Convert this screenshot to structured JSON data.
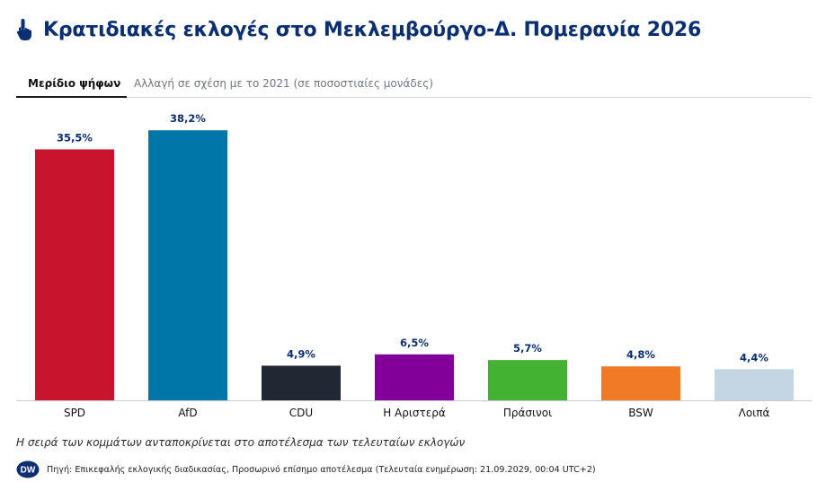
{
  "header": {
    "title": "Κρατιδιακές εκλογές στο Μεκλεμβούργο-Δ. Πομερανία 2026",
    "icon": "pointing-hand-icon"
  },
  "tabs": [
    {
      "label": "Μερίδιο ψήφων",
      "active": true
    },
    {
      "label": "Αλλαγή σε σχέση με το 2021 (σε ποσοστιαίες μονάδες)",
      "active": false
    }
  ],
  "chart_data": {
    "type": "bar",
    "categories": [
      "SPD",
      "AfD",
      "CDU",
      "Η Αριστερά",
      "Πράσινοι",
      "BSW",
      "Λοιπά"
    ],
    "values": [
      35.5,
      38.2,
      4.9,
      6.5,
      5.7,
      4.8,
      4.4
    ],
    "value_labels": [
      "35,5%",
      "38,2%",
      "4,9%",
      "6,5%",
      "5,7%",
      "4,8%",
      "4,4%"
    ],
    "colors": [
      "#c8152d",
      "#0076a8",
      "#222734",
      "#820099",
      "#43b131",
      "#f07a26",
      "#c4d6e4"
    ],
    "ylim": [
      0,
      40
    ],
    "grid": false
  },
  "footnote": "Η σειρά των κομμάτων ανταποκρίνεται στο αποτέλεσμα των τελευταίων εκλογών",
  "source": {
    "logo": "dw-logo-icon",
    "text": "Πηγή: Επικεφαλής εκλογικής διαδικασίας, Προσωρινό επίσημο αποτέλεσμα (Τελευταία ενημέρωση: 21.09.2029, 00:04 UTC+2)"
  }
}
